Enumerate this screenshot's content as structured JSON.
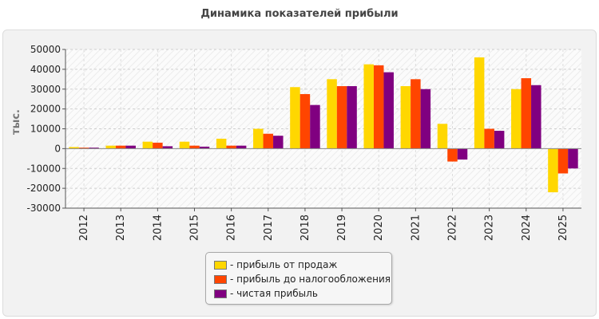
{
  "chart_data": {
    "type": "bar",
    "title": "Динамика показателей прибыли",
    "ylabel": "тыс.",
    "xlabel": "",
    "ylim": [
      -30000,
      50000
    ],
    "yticks": [
      -30000,
      -20000,
      -10000,
      0,
      10000,
      20000,
      30000,
      40000,
      50000
    ],
    "grid": true,
    "legend_position": "bottom-center",
    "categories": [
      "2012",
      "2013",
      "2014",
      "2015",
      "2016",
      "2017",
      "2018",
      "2019",
      "2020",
      "2021",
      "2022",
      "2023",
      "2024",
      "2025"
    ],
    "series": [
      {
        "name": "- прибыль от продаж",
        "color": "#ffd700",
        "values": [
          800,
          1500,
          3500,
          3500,
          5000,
          10000,
          31000,
          35000,
          42500,
          31500,
          12500,
          46000,
          30000,
          -22000
        ]
      },
      {
        "name": "- прибыль до налогообложения",
        "color": "#ff4500",
        "values": [
          500,
          1500,
          3000,
          1500,
          1500,
          7500,
          27500,
          31500,
          42000,
          35000,
          -6500,
          10000,
          35500,
          -12500
        ]
      },
      {
        "name": "- чистая прибыль",
        "color": "#800080",
        "values": [
          500,
          1500,
          1200,
          1000,
          1500,
          6500,
          22000,
          31500,
          38500,
          30000,
          -5500,
          9000,
          32000,
          -10000
        ]
      }
    ]
  }
}
